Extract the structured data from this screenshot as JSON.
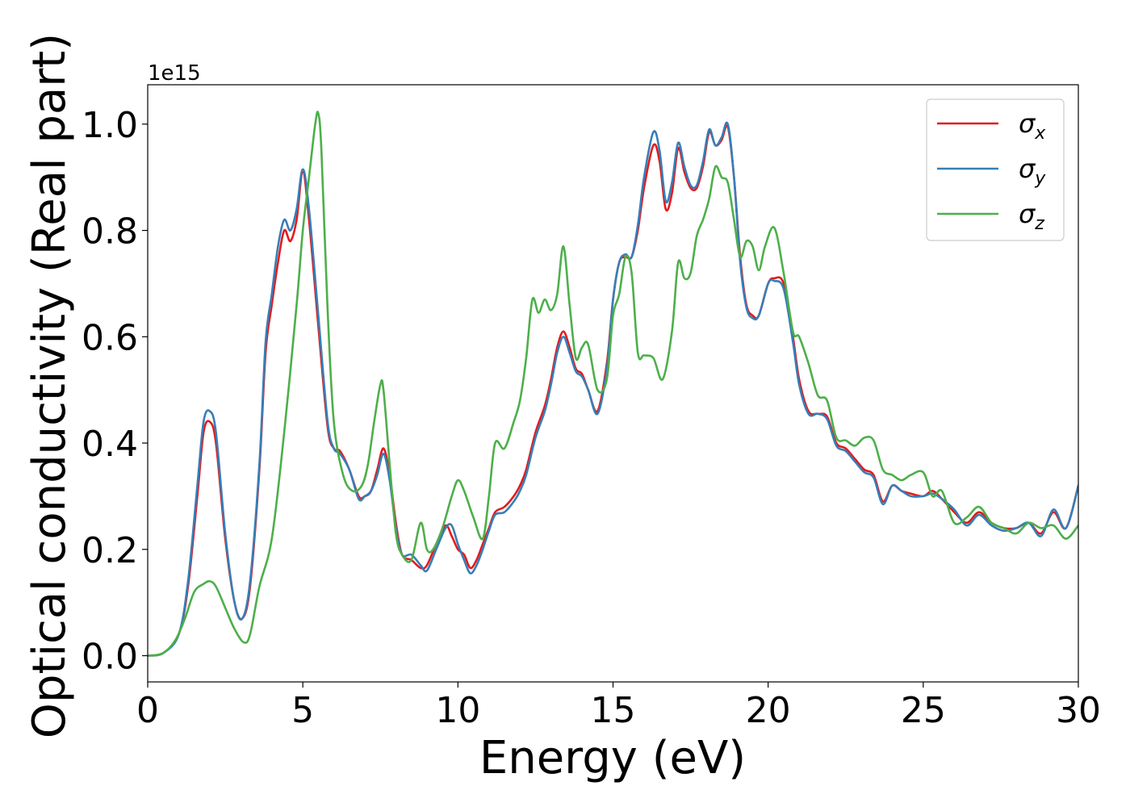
{
  "chart_data": {
    "type": "line",
    "xlabel": "Energy (eV)",
    "ylabel": "Optical conductivity (Real part)",
    "offset_text": "1e15",
    "xlim": [
      0,
      30
    ],
    "ylim": [
      -0.05,
      1.07
    ],
    "xticks": [
      "0",
      "5",
      "10",
      "15",
      "20",
      "25",
      "30"
    ],
    "yticks": [
      "0.0",
      "0.2",
      "0.4",
      "0.6",
      "0.8",
      "1.0"
    ],
    "legend_position": "top-right",
    "grid": false,
    "series": [
      {
        "key": "x",
        "symbol": "σ",
        "subscript": "x",
        "color": "#e41a1c",
        "x": [
          0,
          0.5,
          1.0,
          1.3,
          1.6,
          1.8,
          2.0,
          2.2,
          2.5,
          2.8,
          3.05,
          3.3,
          3.6,
          3.8,
          4.0,
          4.2,
          4.4,
          4.6,
          4.8,
          5.0,
          5.2,
          5.5,
          5.8,
          6.0,
          6.2,
          6.5,
          6.8,
          7.0,
          7.2,
          7.4,
          7.6,
          7.8,
          8.0,
          8.2,
          8.5,
          8.8,
          9.0,
          9.3,
          9.6,
          9.8,
          10.0,
          10.2,
          10.4,
          10.6,
          10.8,
          11.0,
          11.2,
          11.5,
          11.8,
          12.0,
          12.2,
          12.5,
          12.8,
          13.0,
          13.2,
          13.4,
          13.6,
          13.8,
          14.0,
          14.2,
          14.5,
          14.8,
          15.0,
          15.2,
          15.4,
          15.6,
          15.8,
          16.0,
          16.3,
          16.5,
          16.7,
          16.9,
          17.1,
          17.3,
          17.5,
          17.7,
          17.9,
          18.1,
          18.3,
          18.5,
          18.7,
          18.9,
          19.1,
          19.3,
          19.5,
          19.7,
          20.0,
          20.2,
          20.5,
          20.8,
          21.0,
          21.3,
          21.6,
          21.9,
          22.2,
          22.5,
          22.8,
          23.1,
          23.4,
          23.7,
          24.0,
          24.3,
          24.6,
          25.0,
          25.3,
          25.6,
          26.0,
          26.4,
          26.8,
          27.2,
          27.6,
          28.0,
          28.4,
          28.8,
          29.2,
          29.6,
          30.0
        ],
        "values": [
          0.0,
          0.005,
          0.04,
          0.13,
          0.3,
          0.42,
          0.44,
          0.4,
          0.22,
          0.1,
          0.07,
          0.13,
          0.35,
          0.57,
          0.66,
          0.74,
          0.8,
          0.78,
          0.82,
          0.91,
          0.82,
          0.62,
          0.43,
          0.39,
          0.385,
          0.35,
          0.3,
          0.3,
          0.31,
          0.35,
          0.39,
          0.34,
          0.25,
          0.19,
          0.18,
          0.165,
          0.17,
          0.21,
          0.245,
          0.225,
          0.2,
          0.19,
          0.165,
          0.18,
          0.21,
          0.24,
          0.27,
          0.28,
          0.3,
          0.32,
          0.35,
          0.42,
          0.47,
          0.52,
          0.58,
          0.61,
          0.58,
          0.54,
          0.53,
          0.5,
          0.46,
          0.55,
          0.67,
          0.74,
          0.75,
          0.75,
          0.8,
          0.88,
          0.96,
          0.93,
          0.84,
          0.87,
          0.955,
          0.91,
          0.88,
          0.88,
          0.92,
          0.985,
          0.96,
          0.97,
          0.995,
          0.9,
          0.75,
          0.66,
          0.64,
          0.64,
          0.7,
          0.71,
          0.7,
          0.6,
          0.52,
          0.46,
          0.455,
          0.45,
          0.4,
          0.39,
          0.37,
          0.35,
          0.34,
          0.29,
          0.32,
          0.31,
          0.305,
          0.3,
          0.31,
          0.295,
          0.27,
          0.25,
          0.27,
          0.25,
          0.24,
          0.24,
          0.25,
          0.23,
          0.27,
          0.24,
          0.32
        ]
      },
      {
        "key": "y",
        "symbol": "σ",
        "subscript": "y",
        "color": "#377eb8",
        "x": [
          0,
          0.5,
          1.0,
          1.3,
          1.6,
          1.8,
          2.0,
          2.2,
          2.5,
          2.8,
          3.05,
          3.3,
          3.6,
          3.8,
          4.0,
          4.2,
          4.4,
          4.6,
          4.8,
          5.0,
          5.2,
          5.5,
          5.8,
          6.0,
          6.2,
          6.5,
          6.8,
          7.0,
          7.2,
          7.4,
          7.6,
          7.8,
          8.0,
          8.2,
          8.5,
          8.8,
          9.0,
          9.3,
          9.6,
          9.8,
          10.0,
          10.2,
          10.4,
          10.6,
          10.8,
          11.0,
          11.2,
          11.5,
          11.8,
          12.0,
          12.2,
          12.5,
          12.8,
          13.0,
          13.2,
          13.4,
          13.6,
          13.8,
          14.0,
          14.2,
          14.5,
          14.8,
          15.0,
          15.2,
          15.4,
          15.6,
          15.8,
          16.0,
          16.3,
          16.5,
          16.7,
          16.9,
          17.1,
          17.3,
          17.5,
          17.7,
          17.9,
          18.1,
          18.3,
          18.5,
          18.7,
          18.9,
          19.1,
          19.3,
          19.5,
          19.7,
          20.0,
          20.2,
          20.5,
          20.8,
          21.0,
          21.3,
          21.6,
          21.9,
          22.2,
          22.5,
          22.8,
          23.1,
          23.4,
          23.7,
          24.0,
          24.3,
          24.6,
          25.0,
          25.3,
          25.6,
          26.0,
          26.4,
          26.8,
          27.2,
          27.6,
          28.0,
          28.4,
          28.8,
          29.2,
          29.6,
          30.0
        ],
        "values": [
          0.0,
          0.005,
          0.04,
          0.14,
          0.32,
          0.44,
          0.46,
          0.42,
          0.23,
          0.1,
          0.07,
          0.14,
          0.36,
          0.59,
          0.68,
          0.77,
          0.82,
          0.8,
          0.84,
          0.915,
          0.84,
          0.64,
          0.44,
          0.39,
          0.38,
          0.35,
          0.295,
          0.3,
          0.31,
          0.34,
          0.38,
          0.33,
          0.24,
          0.19,
          0.19,
          0.17,
          0.16,
          0.2,
          0.24,
          0.245,
          0.21,
          0.18,
          0.155,
          0.17,
          0.2,
          0.235,
          0.265,
          0.27,
          0.29,
          0.31,
          0.34,
          0.41,
          0.46,
          0.51,
          0.57,
          0.6,
          0.57,
          0.535,
          0.525,
          0.5,
          0.455,
          0.54,
          0.67,
          0.74,
          0.755,
          0.75,
          0.81,
          0.9,
          0.985,
          0.95,
          0.855,
          0.89,
          0.965,
          0.92,
          0.885,
          0.885,
          0.93,
          0.99,
          0.96,
          0.975,
          1.0,
          0.9,
          0.74,
          0.655,
          0.635,
          0.64,
          0.7,
          0.705,
          0.69,
          0.59,
          0.51,
          0.455,
          0.455,
          0.445,
          0.395,
          0.385,
          0.365,
          0.345,
          0.335,
          0.285,
          0.32,
          0.31,
          0.3,
          0.3,
          0.305,
          0.295,
          0.275,
          0.245,
          0.265,
          0.245,
          0.235,
          0.24,
          0.25,
          0.225,
          0.275,
          0.24,
          0.32
        ]
      },
      {
        "key": "z",
        "symbol": "σ",
        "subscript": "z",
        "color": "#4daf4a",
        "x": [
          0,
          0.5,
          0.9,
          1.2,
          1.5,
          1.8,
          2.0,
          2.2,
          2.5,
          2.8,
          3.1,
          3.3,
          3.6,
          4.0,
          4.4,
          4.8,
          5.0,
          5.2,
          5.4,
          5.5,
          5.6,
          5.8,
          6.0,
          6.3,
          6.6,
          6.9,
          7.1,
          7.3,
          7.5,
          7.6,
          7.8,
          8.0,
          8.2,
          8.5,
          8.8,
          9.0,
          9.2,
          9.5,
          9.8,
          10.0,
          10.2,
          10.5,
          10.8,
          11.0,
          11.2,
          11.5,
          11.8,
          12.0,
          12.2,
          12.4,
          12.6,
          12.8,
          13.0,
          13.2,
          13.4,
          13.6,
          13.8,
          14.0,
          14.2,
          14.5,
          14.8,
          15.0,
          15.2,
          15.4,
          15.6,
          15.8,
          16.0,
          16.3,
          16.6,
          16.9,
          17.1,
          17.3,
          17.5,
          17.7,
          17.9,
          18.1,
          18.3,
          18.5,
          18.7,
          18.9,
          19.1,
          19.3,
          19.5,
          19.7,
          19.9,
          20.2,
          20.5,
          20.8,
          21.0,
          21.3,
          21.6,
          21.9,
          22.2,
          22.5,
          22.8,
          23.1,
          23.4,
          23.7,
          24.0,
          24.3,
          24.6,
          25.0,
          25.3,
          25.6,
          26.0,
          26.4,
          26.8,
          27.2,
          27.6,
          28.0,
          28.4,
          28.8,
          29.2,
          29.6,
          30.0
        ],
        "values": [
          0.0,
          0.005,
          0.03,
          0.07,
          0.12,
          0.135,
          0.14,
          0.13,
          0.09,
          0.05,
          0.025,
          0.04,
          0.13,
          0.22,
          0.42,
          0.66,
          0.8,
          0.9,
          1.0,
          1.02,
          0.95,
          0.65,
          0.44,
          0.34,
          0.31,
          0.32,
          0.36,
          0.44,
          0.51,
          0.5,
          0.36,
          0.23,
          0.19,
          0.18,
          0.25,
          0.2,
          0.2,
          0.24,
          0.3,
          0.33,
          0.31,
          0.26,
          0.22,
          0.3,
          0.4,
          0.39,
          0.44,
          0.48,
          0.56,
          0.67,
          0.645,
          0.67,
          0.65,
          0.68,
          0.77,
          0.66,
          0.56,
          0.58,
          0.585,
          0.5,
          0.52,
          0.64,
          0.68,
          0.75,
          0.72,
          0.57,
          0.565,
          0.56,
          0.52,
          0.61,
          0.74,
          0.71,
          0.72,
          0.79,
          0.82,
          0.86,
          0.92,
          0.9,
          0.89,
          0.82,
          0.75,
          0.78,
          0.77,
          0.725,
          0.77,
          0.805,
          0.72,
          0.61,
          0.6,
          0.55,
          0.49,
          0.48,
          0.41,
          0.405,
          0.395,
          0.41,
          0.405,
          0.35,
          0.34,
          0.33,
          0.34,
          0.345,
          0.3,
          0.31,
          0.25,
          0.26,
          0.28,
          0.25,
          0.24,
          0.23,
          0.25,
          0.24,
          0.245,
          0.22,
          0.245
        ]
      }
    ]
  }
}
